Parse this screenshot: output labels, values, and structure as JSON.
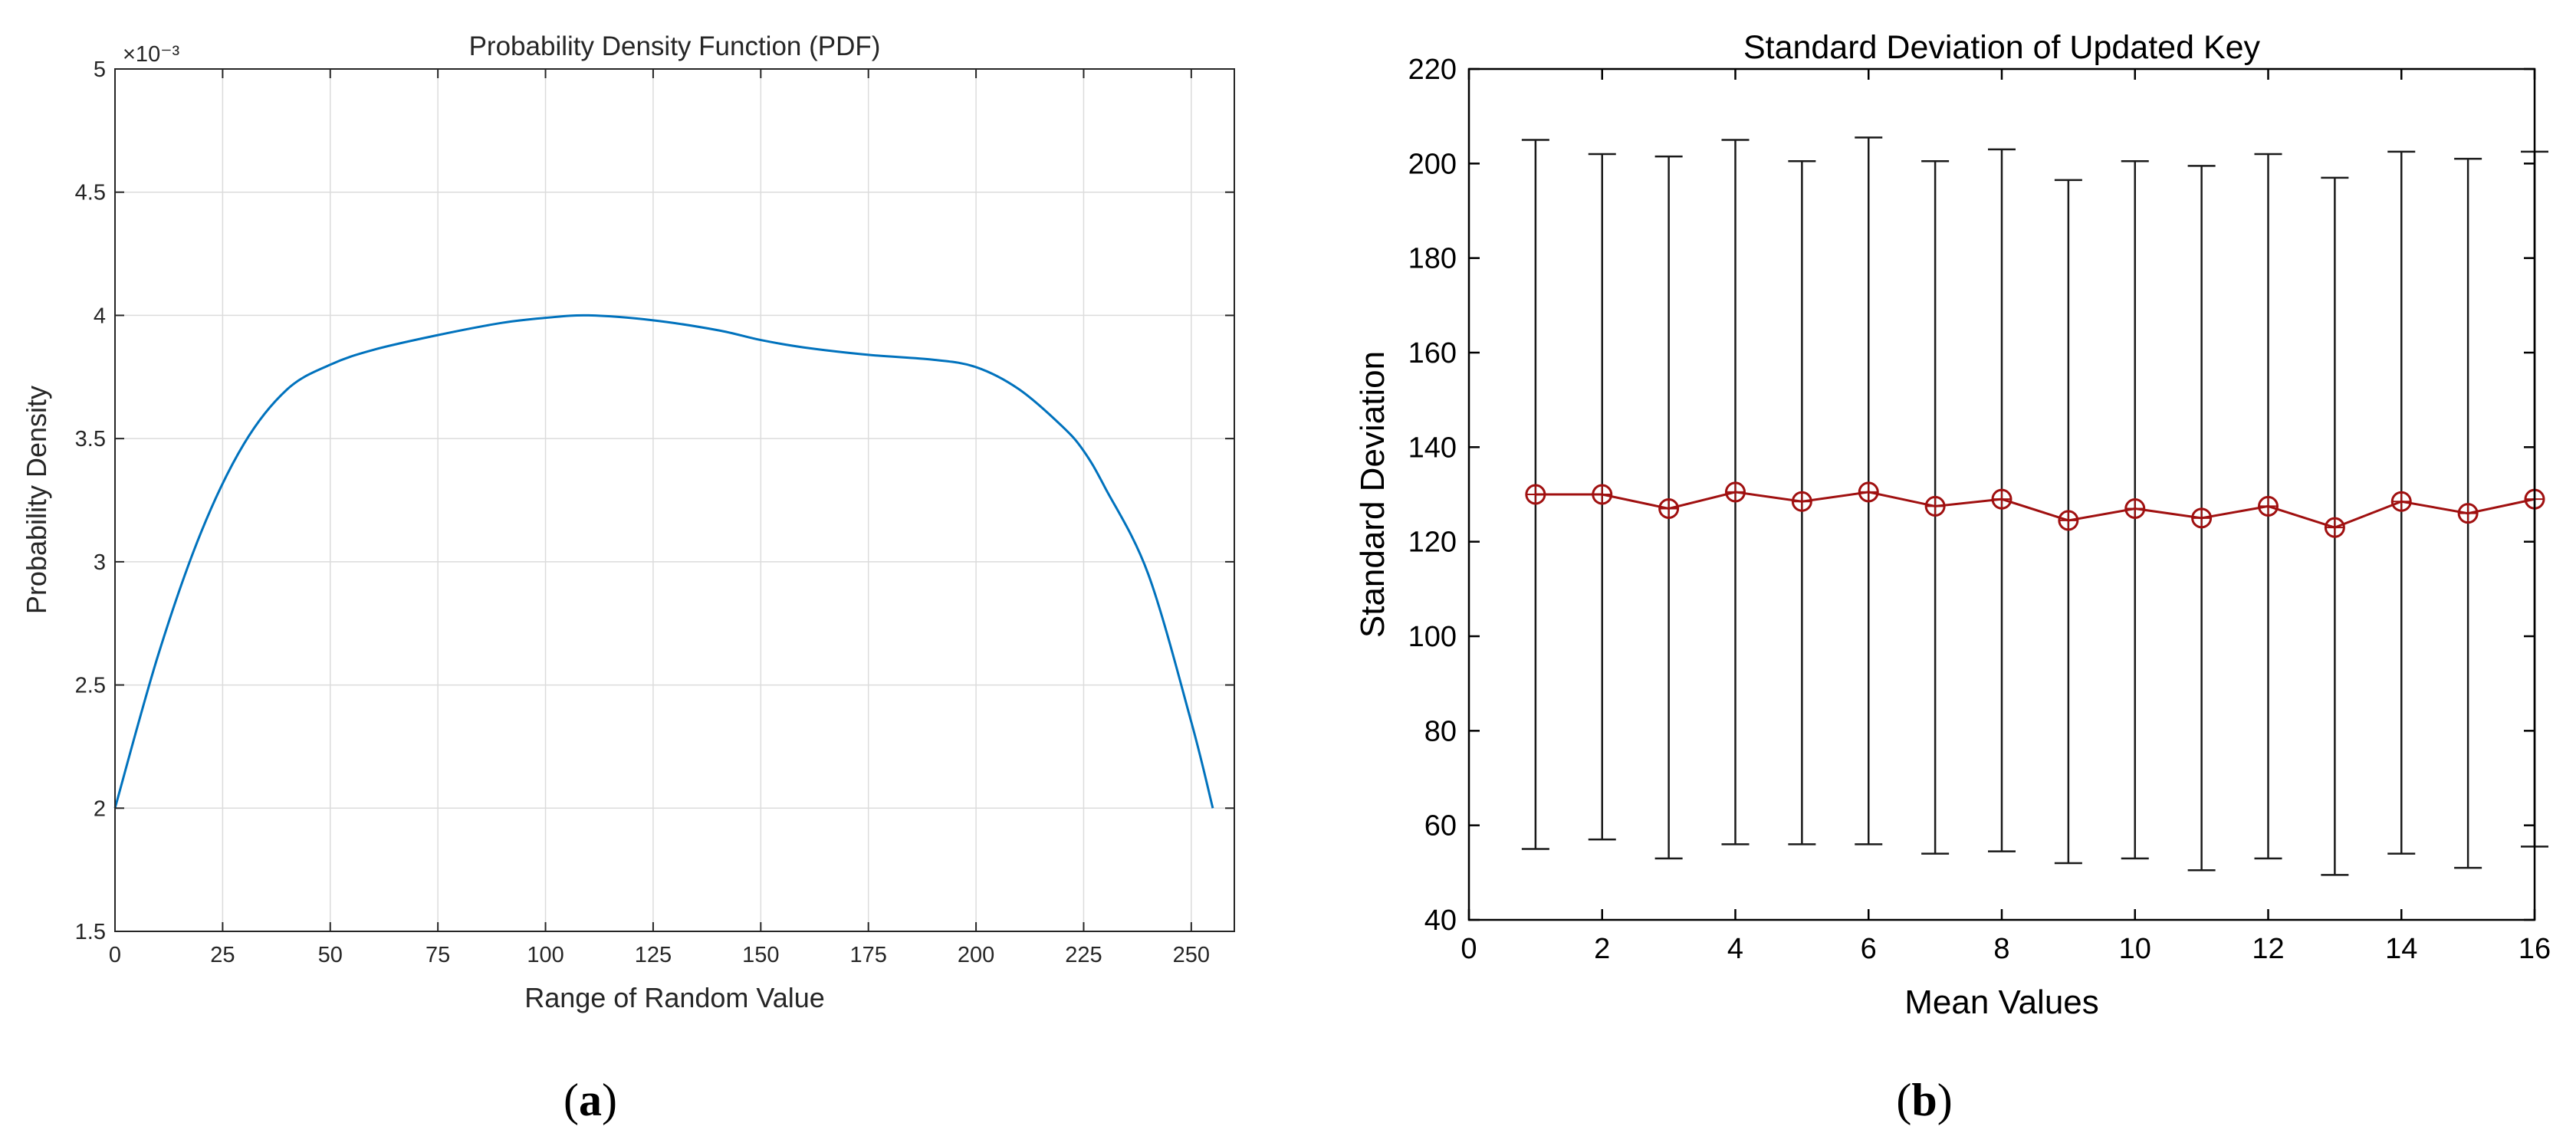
{
  "chart_data": [
    {
      "type": "line",
      "title": "Probability Density Function (PDF)",
      "xlabel": "Range of Random Value",
      "ylabel": "Probability Density",
      "y_exponent_label": "×10⁻³",
      "xlim": [
        0,
        260
      ],
      "ylim": [
        1.5,
        5
      ],
      "xticks": [
        0,
        25,
        50,
        75,
        100,
        125,
        150,
        175,
        200,
        225,
        250
      ],
      "yticks": [
        1.5,
        2,
        2.5,
        3,
        3.5,
        4,
        4.5,
        5
      ],
      "ytick_labels": [
        "1.5",
        "2",
        "2.5",
        "3",
        "3.5",
        "4",
        "4.5",
        "5"
      ],
      "grid": true,
      "line_color": "#0072bd",
      "series": [
        {
          "name": "PDF",
          "x": [
            0,
            10,
            20,
            30,
            40,
            50,
            60,
            75,
            90,
            100,
            110,
            125,
            140,
            150,
            160,
            175,
            190,
            200,
            210,
            220,
            225,
            230,
            240,
            250,
            255
          ],
          "y": [
            2.0,
            2.62,
            3.12,
            3.48,
            3.7,
            3.8,
            3.86,
            3.92,
            3.97,
            3.99,
            4.0,
            3.98,
            3.94,
            3.9,
            3.87,
            3.84,
            3.82,
            3.79,
            3.7,
            3.55,
            3.45,
            3.3,
            2.95,
            2.35,
            2.0
          ]
        }
      ],
      "panel_label": "a"
    },
    {
      "type": "errorbar",
      "title": "Standard Deviation of Updated Key",
      "xlabel": "Mean Values",
      "ylabel": "Standard Deviation",
      "xlim": [
        0,
        16
      ],
      "ylim": [
        40,
        220
      ],
      "xticks": [
        0,
        2,
        4,
        6,
        8,
        10,
        12,
        14,
        16
      ],
      "yticks": [
        40,
        60,
        80,
        100,
        120,
        140,
        160,
        180,
        200,
        220
      ],
      "grid": false,
      "line_color": "#a01010",
      "errorbar_color": "#1a1a1a",
      "series": [
        {
          "name": "Standard Deviation",
          "x": [
            1,
            2,
            3,
            4,
            5,
            6,
            7,
            8,
            9,
            10,
            11,
            12,
            13,
            14,
            15,
            16
          ],
          "y": [
            130,
            130,
            127,
            130.5,
            128.5,
            130.5,
            127.5,
            129,
            124.5,
            127,
            125,
            127.5,
            123,
            128.5,
            126,
            129
          ],
          "lower": [
            55,
            57,
            53,
            56,
            56,
            56,
            54,
            54.5,
            52,
            53,
            50.5,
            53,
            49.5,
            54,
            51,
            55.5
          ],
          "upper": [
            205,
            202,
            201.5,
            205,
            200.5,
            205.5,
            200.5,
            203,
            196.5,
            200.5,
            199.5,
            202,
            197,
            202.5,
            201,
            202.5
          ]
        }
      ],
      "panel_label": "b"
    }
  ],
  "panel_labels": {
    "a_open": "(",
    "a_letter": "a",
    "a_close": ")",
    "b_open": "(",
    "b_letter": "b",
    "b_close": ")"
  }
}
